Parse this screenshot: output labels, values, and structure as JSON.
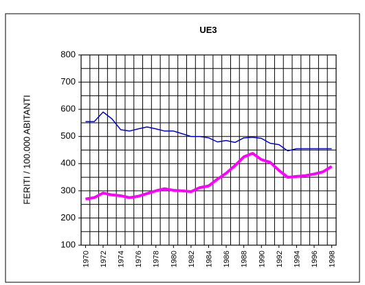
{
  "chart_data": {
    "type": "line",
    "title": "UE3",
    "ylabel": "FERITI / 100.000 ABITANTI",
    "x": [
      1970,
      1971,
      1972,
      1973,
      1974,
      1975,
      1976,
      1977,
      1978,
      1979,
      1980,
      1981,
      1982,
      1983,
      1984,
      1985,
      1986,
      1987,
      1988,
      1989,
      1990,
      1991,
      1992,
      1993,
      1994,
      1995,
      1996,
      1997,
      1998
    ],
    "series": [
      {
        "color": "#0000cc",
        "values": [
          555,
          555,
          590,
          565,
          525,
          520,
          528,
          535,
          528,
          520,
          520,
          510,
          500,
          500,
          495,
          480,
          485,
          478,
          495,
          497,
          493,
          475,
          470,
          447,
          455,
          455,
          455,
          455,
          455
        ]
      },
      {
        "color": "#ff00ff",
        "values": [
          270,
          275,
          292,
          285,
          282,
          275,
          280,
          290,
          300,
          308,
          302,
          300,
          297,
          312,
          318,
          343,
          365,
          393,
          425,
          438,
          415,
          405,
          375,
          350,
          353,
          356,
          362,
          370,
          390
        ]
      }
    ],
    "xlim": [
      1969.5,
      1998.5
    ],
    "xticks": [
      1970,
      1972,
      1974,
      1976,
      1978,
      1980,
      1982,
      1984,
      1986,
      1988,
      1990,
      1992,
      1994,
      1996,
      1998
    ],
    "ylim": [
      100,
      800
    ],
    "yticks": [
      100,
      200,
      300,
      400,
      500,
      600,
      700,
      800
    ],
    "grid": true
  }
}
